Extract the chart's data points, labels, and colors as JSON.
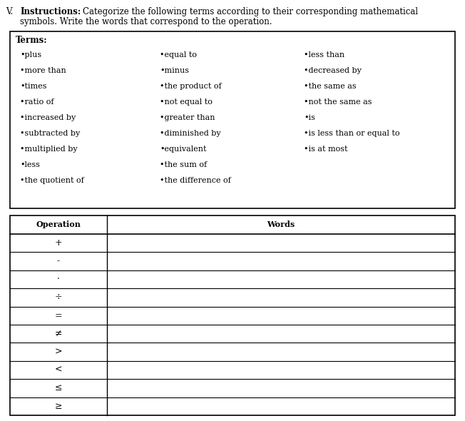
{
  "title_roman": "V.",
  "title_bold": "Instructions:",
  "title_line1": " Categorize the following terms according to their corresponding mathematical",
  "title_line2": "symbols. Write the words that correspond to the operation.",
  "terms_label": "Terms:",
  "terms_col1": [
    "•plus",
    "•more than",
    "•times",
    "•ratio of",
    "•increased by",
    "•subtracted by",
    "•multiplied by",
    "•less",
    "•the quotient of"
  ],
  "terms_col2": [
    "•equal to",
    "•minus",
    "•the product of",
    "•not equal to",
    "•greater than",
    "•diminished by",
    "•equivalent",
    "•the sum of",
    "•the difference of"
  ],
  "terms_col3": [
    "•less than",
    "•decreased by",
    "•the same as",
    "•not the same as",
    "•is",
    "•is less than or equal to",
    "•is at most",
    "",
    ""
  ],
  "table_header": [
    "Operation",
    "Words"
  ],
  "table_rows": [
    "+",
    "-",
    "·",
    "÷",
    "=",
    "≠",
    ">",
    "<",
    "≤",
    "≥"
  ],
  "bg_color": "#ffffff",
  "text_color": "#000000",
  "fontsize": 8.5,
  "fontsize_terms": 8.0
}
